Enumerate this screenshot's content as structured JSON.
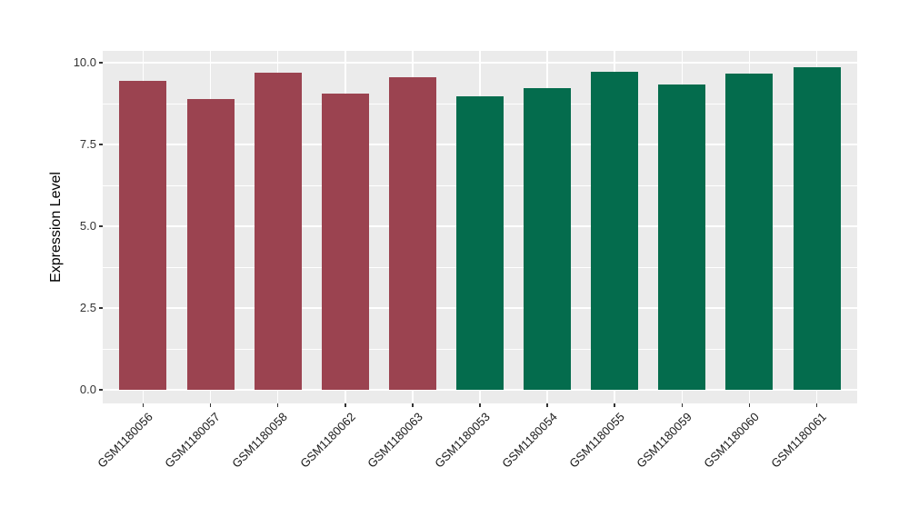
{
  "chart_data": {
    "type": "bar",
    "title": "",
    "xlabel": "",
    "ylabel": "Expression Level",
    "ylim": [
      0,
      10
    ],
    "ytick_values": [
      0,
      2.5,
      5,
      7.5,
      10
    ],
    "yticks": [
      "0.0",
      "2.5",
      "5.0",
      "7.5",
      "10.0"
    ],
    "grid": true,
    "legend": "none",
    "categories": [
      "GSM1180056",
      "GSM1180057",
      "GSM1180058",
      "GSM1180062",
      "GSM1180063",
      "GSM1180053",
      "GSM1180054",
      "GSM1180055",
      "GSM1180059",
      "GSM1180060",
      "GSM1180061"
    ],
    "values": [
      9.44,
      8.89,
      9.69,
      9.05,
      9.55,
      8.96,
      9.22,
      9.71,
      9.33,
      9.66,
      9.86
    ],
    "bar_groups": [
      "group1",
      "group1",
      "group1",
      "group1",
      "group1",
      "group2",
      "group2",
      "group2",
      "group2",
      "group2",
      "group2"
    ],
    "group_colors": {
      "group1": "#9B4350",
      "group2": "#046C4D"
    },
    "colors": {
      "panel_background": "#EBEBEB",
      "page_background": "#FFFFFF",
      "gridline": "#FFFFFF",
      "tick_text": "#333333",
      "axis_title_text": "#000000"
    }
  }
}
